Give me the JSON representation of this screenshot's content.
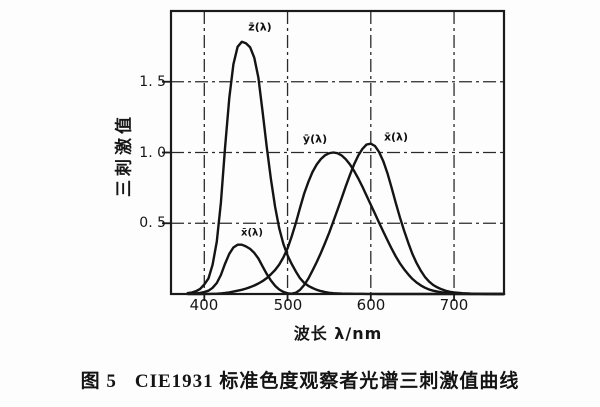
{
  "figure": {
    "caption_label": "图 5",
    "caption_text": "CIE1931 标准色度观察者光谱三刺激值曲线"
  },
  "chart_data": {
    "type": "line",
    "title": "",
    "xlabel": "波长 λ/nm",
    "ylabel": "三刺激值",
    "xlim": [
      360,
      760
    ],
    "ylim": [
      0,
      2
    ],
    "grid": true,
    "legend_position": "none",
    "ink_color": "#1a1a1a",
    "background_color": "#fdfdfd",
    "x_ticks": [
      400,
      500,
      600,
      700
    ],
    "x_tick_labels": [
      "400",
      "500",
      "600",
      "700"
    ],
    "y_ticks": [
      1.5,
      1.0,
      0.5
    ],
    "y_tick_labels": [
      "1. 5",
      "1. 0",
      "0. 5"
    ],
    "annotations": {
      "zbar": "z̄(λ)",
      "ybar": "ȳ(λ)",
      "xbar": "x̄(λ)",
      "xbar_secondary": "x̄(λ)"
    },
    "x": [
      380,
      385,
      390,
      395,
      400,
      405,
      410,
      415,
      420,
      425,
      430,
      435,
      440,
      445,
      450,
      455,
      460,
      465,
      470,
      475,
      480,
      485,
      490,
      495,
      500,
      505,
      510,
      515,
      520,
      525,
      530,
      535,
      540,
      545,
      550,
      555,
      560,
      565,
      570,
      575,
      580,
      585,
      590,
      595,
      600,
      605,
      610,
      615,
      620,
      625,
      630,
      635,
      640,
      645,
      650,
      655,
      660,
      665,
      670,
      675,
      680,
      685,
      690,
      695,
      700,
      710,
      720,
      730,
      740,
      750,
      760
    ],
    "series": [
      {
        "name": "x̄(λ)",
        "values": [
          0.0014,
          0.0022,
          0.0042,
          0.0076,
          0.0143,
          0.0232,
          0.0435,
          0.0776,
          0.1344,
          0.2148,
          0.2839,
          0.3285,
          0.3483,
          0.3481,
          0.3362,
          0.3187,
          0.2908,
          0.2511,
          0.1954,
          0.1421,
          0.0956,
          0.058,
          0.032,
          0.0147,
          0.0049,
          0.0024,
          0.0093,
          0.0291,
          0.0633,
          0.1096,
          0.1655,
          0.2257,
          0.2904,
          0.3597,
          0.4334,
          0.5121,
          0.5945,
          0.6784,
          0.7621,
          0.8425,
          0.9163,
          0.9786,
          1.0263,
          1.0567,
          1.0622,
          1.0456,
          1.0026,
          0.9384,
          0.8544,
          0.7514,
          0.6424,
          0.5419,
          0.4479,
          0.3608,
          0.2835,
          0.2187,
          0.1649,
          0.1212,
          0.0874,
          0.0636,
          0.0468,
          0.0329,
          0.0227,
          0.0158,
          0.0114,
          0.0058,
          0.0029,
          0.0014,
          0.0007,
          0.0003,
          0.0002
        ]
      },
      {
        "name": "ȳ(λ)",
        "values": [
          0.0,
          0.0001,
          0.0001,
          0.0002,
          0.0004,
          0.0006,
          0.0012,
          0.0022,
          0.004,
          0.0073,
          0.0116,
          0.0168,
          0.023,
          0.0298,
          0.038,
          0.048,
          0.06,
          0.0739,
          0.091,
          0.1126,
          0.139,
          0.1693,
          0.208,
          0.2586,
          0.323,
          0.4073,
          0.503,
          0.6082,
          0.71,
          0.7932,
          0.862,
          0.9149,
          0.954,
          0.9803,
          0.995,
          1.0,
          0.995,
          0.9786,
          0.952,
          0.9154,
          0.87,
          0.8163,
          0.757,
          0.6949,
          0.631,
          0.5668,
          0.503,
          0.4412,
          0.381,
          0.321,
          0.265,
          0.217,
          0.175,
          0.1382,
          0.107,
          0.0816,
          0.061,
          0.0446,
          0.032,
          0.0232,
          0.017,
          0.0119,
          0.0082,
          0.0057,
          0.0041,
          0.0021,
          0.001,
          0.0005,
          0.0002,
          0.0001,
          0.0001
        ]
      },
      {
        "name": "z̄(λ)",
        "values": [
          0.0065,
          0.0105,
          0.0201,
          0.0362,
          0.0679,
          0.1102,
          0.2074,
          0.3713,
          0.6456,
          1.0391,
          1.3856,
          1.623,
          1.7471,
          1.7826,
          1.7721,
          1.7441,
          1.6692,
          1.5281,
          1.2876,
          1.0419,
          0.813,
          0.6162,
          0.4652,
          0.3533,
          0.272,
          0.2123,
          0.1582,
          0.1117,
          0.0782,
          0.0573,
          0.0422,
          0.0298,
          0.0203,
          0.0134,
          0.0087,
          0.0057,
          0.0039,
          0.0027,
          0.0021,
          0.0018,
          0.0017,
          0.0014,
          0.0011,
          0.001,
          0.0008,
          0.0006,
          0.0003,
          0.0002,
          0.0002,
          0.0001,
          0,
          0,
          0,
          0,
          0,
          0,
          0,
          0,
          0,
          0,
          0,
          0,
          0,
          0,
          0,
          0,
          0,
          0,
          0,
          0,
          0
        ]
      }
    ]
  }
}
